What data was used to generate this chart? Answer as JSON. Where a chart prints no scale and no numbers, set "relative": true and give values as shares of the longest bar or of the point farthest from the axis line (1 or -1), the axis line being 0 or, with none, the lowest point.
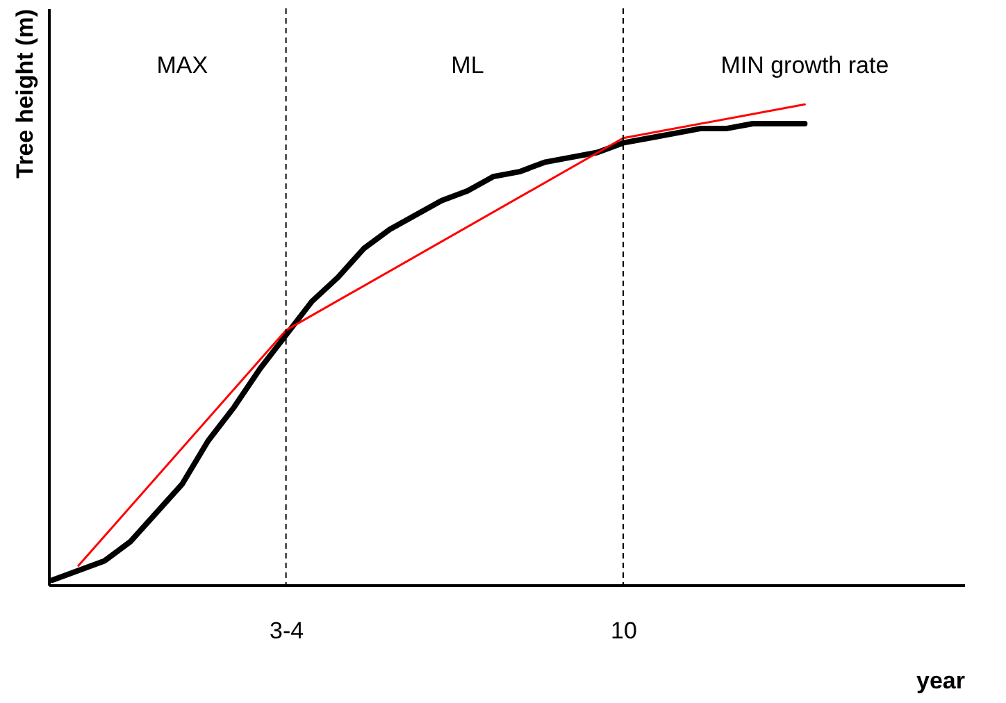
{
  "chart_data": {
    "type": "line",
    "relative": true,
    "xlabel": "year",
    "ylabel": "Tree height (m)",
    "annotations": [
      "MAX",
      "ML",
      "MIN  growth rate"
    ],
    "categories": [
      null,
      null,
      null,
      null,
      null,
      null,
      null,
      null,
      null,
      "3-4",
      null,
      null,
      null,
      null,
      null,
      null,
      null,
      null,
      null,
      null,
      null,
      null,
      "10",
      null,
      null,
      null,
      null,
      null,
      null,
      null,
      null,
      null,
      null,
      null,
      null,
      null
    ],
    "grid": false,
    "ref_lines": [
      {
        "axis": "x",
        "value": "3-4",
        "label": null,
        "color": "#000000",
        "line_style": "dashed"
      },
      {
        "axis": "x",
        "value": "10",
        "label": null,
        "color": "#000000",
        "line_style": "dashed"
      }
    ],
    "series": [
      {
        "color": "#000000",
        "values": [
          0.01,
          0.03,
          0.05,
          0.09,
          0.15,
          0.21,
          0.3,
          0.37,
          0.45,
          0.52,
          0.59,
          0.64,
          0.7,
          0.74,
          0.77,
          0.8,
          0.82,
          0.85,
          0.86,
          0.88,
          0.89,
          0.9,
          0.92,
          0.93,
          0.94,
          0.95,
          0.95,
          0.96,
          0.96,
          0.96,
          null,
          null,
          null,
          null,
          null,
          null
        ]
      },
      {
        "color": "#ff0000",
        "values": [
          null,
          0.04,
          null,
          null,
          null,
          null,
          null,
          null,
          null,
          0.53,
          null,
          null,
          null,
          null,
          null,
          null,
          null,
          null,
          null,
          null,
          null,
          null,
          0.93,
          null,
          null,
          null,
          null,
          null,
          null,
          1,
          null,
          null,
          null,
          null,
          null,
          null
        ]
      }
    ]
  }
}
